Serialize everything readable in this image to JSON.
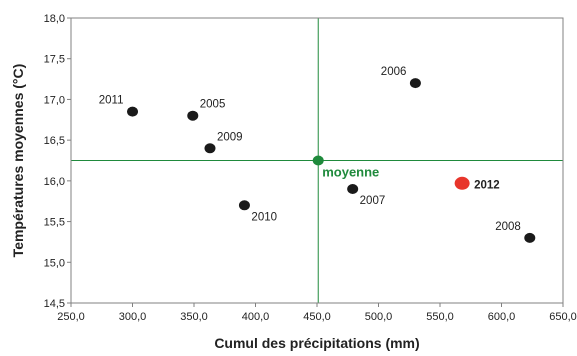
{
  "chart_data": {
    "type": "scatter",
    "title": "",
    "xlabel": "Cumul  des précipitations (mm)",
    "ylabel": "Températures moyennes (°C)",
    "xlim": [
      250,
      650
    ],
    "ylim": [
      14.5,
      18.0
    ],
    "x_ticks": [
      "250,0",
      "300,0",
      "350,0",
      "400,0",
      "450,0",
      "500,0",
      "550,0",
      "600,0",
      "650,0"
    ],
    "y_ticks": [
      "14,5",
      "15,0",
      "15,5",
      "16,0",
      "16,5",
      "17,0",
      "17,5",
      "18,0"
    ],
    "grid": false,
    "points": [
      {
        "label": "2011",
        "x": 300,
        "y": 16.85,
        "color": "#1a1a1a",
        "label_pos": "upper-left"
      },
      {
        "label": "2005",
        "x": 349,
        "y": 16.8,
        "color": "#1a1a1a",
        "label_pos": "upper-right"
      },
      {
        "label": "2009",
        "x": 363,
        "y": 16.4,
        "color": "#1a1a1a",
        "label_pos": "upper-right"
      },
      {
        "label": "2010",
        "x": 391,
        "y": 15.7,
        "color": "#1a1a1a",
        "label_pos": "lower-right"
      },
      {
        "label": "2007",
        "x": 479,
        "y": 15.9,
        "color": "#1a1a1a",
        "label_pos": "lower-right"
      },
      {
        "label": "2006",
        "x": 530,
        "y": 17.2,
        "color": "#1a1a1a",
        "label_pos": "upper-left"
      },
      {
        "label": "2008",
        "x": 623,
        "y": 15.3,
        "color": "#1a1a1a",
        "label_pos": "upper-left"
      },
      {
        "label": "2012",
        "x": 568,
        "y": 15.97,
        "color": "#e8352b",
        "label_pos": "right",
        "highlight": true
      }
    ],
    "mean": {
      "label": "moyenne",
      "x": 451,
      "y": 16.25,
      "color": "#1f8a3c"
    }
  }
}
